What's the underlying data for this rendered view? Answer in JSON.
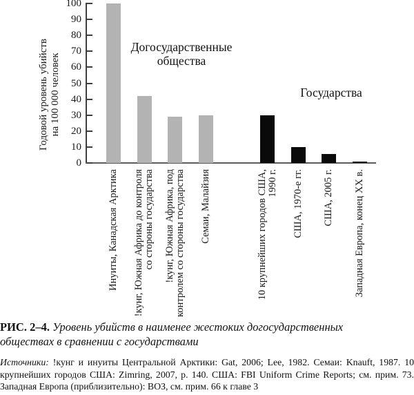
{
  "chart_data": {
    "type": "bar",
    "title": "",
    "xlabel": "",
    "ylabel": "Годовой уровень убийств на 100 000 человек",
    "ylabel_lines": [
      "Годовой уровень убийств",
      "на 100 000 человек"
    ],
    "ylim": [
      0,
      100
    ],
    "y_ticks": [
      0,
      10,
      20,
      30,
      40,
      50,
      60,
      70,
      80,
      90,
      100
    ],
    "grid": false,
    "legend": "none",
    "groups": [
      {
        "id": "nonstate",
        "label_lines": [
          "Догосударственные",
          "общества"
        ],
        "color": "#b3b3b3"
      },
      {
        "id": "state",
        "label_lines": [
          "Государства"
        ],
        "color": "#0a0a0a"
      }
    ],
    "bars": [
      {
        "category": "Инуиты, Канадская Арктика",
        "label_lines": [
          "Инуиты, Канадская Арктика"
        ],
        "value": 100,
        "group": "nonstate"
      },
      {
        "category": "!кунг, Южная Африка до контроля со стороны государства",
        "label_lines": [
          "!кунг, Южная Африка до контроля",
          "со стороны государства"
        ],
        "value": 42,
        "group": "nonstate"
      },
      {
        "category": "!кунг, Южная Африка, под контролем со стороны государства",
        "label_lines": [
          "!кунг, Южная Африка, под",
          "контролем со стороны государства"
        ],
        "value": 29,
        "group": "nonstate"
      },
      {
        "category": "Семаи, Малайзия",
        "label_lines": [
          "Семаи, Малайзия"
        ],
        "value": 30,
        "group": "nonstate"
      },
      {
        "category": "10 крупнейших городов США, 1990 г.",
        "label_lines": [
          "10 крупнейших городов США,",
          "1990 г."
        ],
        "value": 30,
        "group": "state"
      },
      {
        "category": "США, 1970-е гг.",
        "label_lines": [
          "США, 1970-е гг."
        ],
        "value": 10,
        "group": "state"
      },
      {
        "category": "США, 2005 г.",
        "label_lines": [
          "США, 2005 г."
        ],
        "value": 5.6,
        "group": "state"
      },
      {
        "category": "Западная Европа, конец XX в.",
        "label_lines": [
          "Западная Европа, конец XX в."
        ],
        "value": 1,
        "group": "state"
      }
    ]
  },
  "caption": {
    "label": "РИС. 2–4.",
    "text": "Уровень убийств в наименее жестоких догосударственных обществах в сравнении с государствами"
  },
  "sources": {
    "label": "Источники:",
    "text": "!кунг и инуиты Центральной Арктики: Gat, 2006; Lee, 1982. Семаи: Knauft, 1987. 10 крупнейших городов США: Zimring, 2007, p. 140. США: FBI Uniform Crime Reports; см. прим. 73. Западная Европа (приблизительно): ВОЗ, см. прим. 66 к главе 3"
  },
  "colors": {
    "background": "#ffffff",
    "axis": "#3e3e3e",
    "text": "#1a1a1a",
    "bar_nonstate": "#b3b3b3",
    "bar_state": "#0a0a0a"
  }
}
